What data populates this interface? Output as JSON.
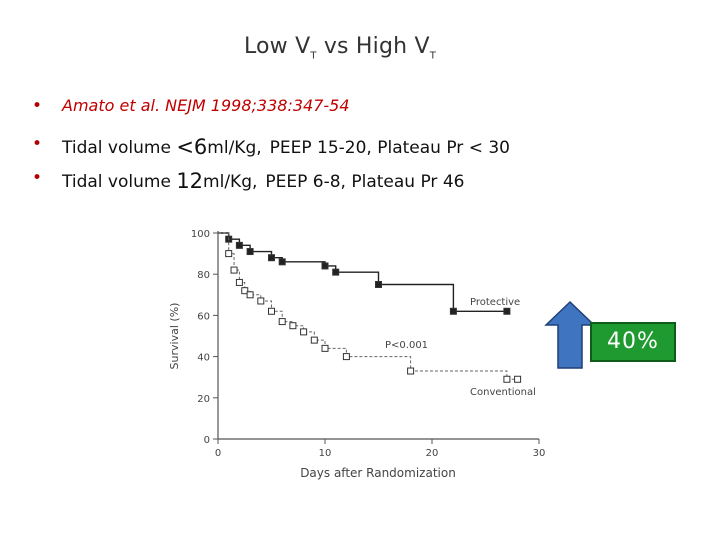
{
  "slide": {
    "title_main": "Low V",
    "title_sub1": "T",
    "title_mid": " vs High V",
    "title_sub2": "T",
    "bullets": [
      {
        "text": "Amato et al. NEJM 1998;338:347-54"
      },
      {
        "pre": "Tidal volume ",
        "big": "<6",
        "post": "ml/Kg,",
        "rest": "PEEP 15-20,  Plateau Pr  <  30"
      },
      {
        "pre": "Tidal volume ",
        "big": "12",
        "post": "ml/Kg,",
        "rest": "PEEP 6-8,  Plateau Pr 46"
      }
    ],
    "badge_text": "40%",
    "colors": {
      "bullet_dot": "#b00000",
      "reference_text": "#c00000",
      "badge_fill": "#1e9a30",
      "arrow_fill": "#3f74c0"
    }
  },
  "chart_data": {
    "type": "line",
    "xlabel": "Days after Randomization",
    "ylabel": "Survival (%)",
    "xlim": [
      0,
      30
    ],
    "ylim": [
      0,
      100
    ],
    "xticks": [
      0,
      10,
      20,
      30
    ],
    "yticks": [
      0,
      20,
      40,
      60,
      80,
      100
    ],
    "grid": false,
    "step": true,
    "annotation": "P<0.001",
    "series": [
      {
        "name": "Protective",
        "marker": "filled-square",
        "line": "solid",
        "x": [
          0,
          1,
          2,
          3,
          5,
          6,
          10,
          11,
          15,
          22,
          27
        ],
        "y": [
          100,
          97,
          94,
          91,
          88,
          86,
          84,
          81,
          75,
          62,
          62
        ]
      },
      {
        "name": "Conventional",
        "marker": "open-square",
        "line": "dashed",
        "x": [
          0,
          1,
          1.5,
          2,
          2.5,
          3,
          4,
          5,
          6,
          7,
          8,
          9,
          10,
          12,
          18,
          27,
          28
        ],
        "y": [
          100,
          90,
          82,
          76,
          72,
          70,
          67,
          62,
          57,
          55,
          52,
          48,
          44,
          40,
          33,
          29,
          29
        ]
      }
    ]
  }
}
